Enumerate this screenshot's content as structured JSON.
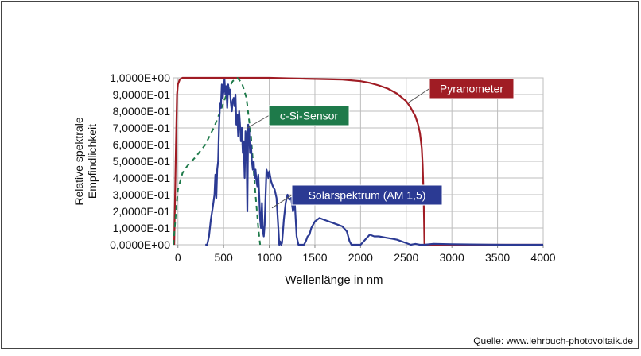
{
  "chart_data": {
    "type": "line",
    "xlabel": "Wellenlänge  in nm",
    "ylabel_lines": [
      "Relative  spektrale",
      "Empfindlichkeit"
    ],
    "xlim": [
      -50,
      4000
    ],
    "ylim": [
      0,
      1
    ],
    "x_ticks": [
      0,
      500,
      1000,
      1500,
      2000,
      2500,
      3000,
      3500,
      4000
    ],
    "x_tick_labels": [
      "0",
      "500",
      "1000",
      "1500",
      "2000",
      "2500",
      "3000",
      "3500",
      "4000"
    ],
    "y_ticks": [
      0,
      0.1,
      0.2,
      0.3,
      0.4,
      0.5,
      0.6,
      0.7,
      0.8,
      0.9,
      1.0
    ],
    "y_tick_labels": [
      "0,0000E+00",
      "1,0000E-01",
      "2,0000E-01",
      "3,0000E-01",
      "4,0000E-01",
      "5,0000E-01",
      "6,0000E-01",
      "7,0000E-01",
      "8,0000E-01",
      "9,0000E-01",
      "1,0000E+00"
    ],
    "grid": true,
    "series": [
      {
        "name": "Pyranometer",
        "color": "#a01c24",
        "style": "solid",
        "x": [
          -40,
          -25,
          -10,
          0,
          20,
          50,
          100,
          300,
          700,
          1000,
          1400,
          1800,
          2000,
          2100,
          2200,
          2300,
          2400,
          2500,
          2550,
          2600,
          2630,
          2650,
          2670,
          2680,
          2690,
          2695,
          2700,
          2720,
          4000
        ],
        "y": [
          0,
          0.5,
          0.9,
          0.96,
          0.99,
          1.0,
          1.0,
          1.0,
          1.0,
          1.0,
          0.995,
          0.99,
          0.98,
          0.97,
          0.955,
          0.935,
          0.905,
          0.86,
          0.82,
          0.77,
          0.72,
          0.67,
          0.58,
          0.48,
          0.3,
          0.15,
          0.0,
          0.0,
          0.0
        ]
      },
      {
        "name": "c-Si-Sensor",
        "color": "#1e7a4a",
        "style": "dashed",
        "x": [
          -50,
          -20,
          0,
          50,
          100,
          150,
          200,
          300,
          400,
          450,
          500,
          550,
          600,
          650,
          700,
          750,
          800,
          850,
          880,
          900
        ],
        "y": [
          0.0,
          0.2,
          0.33,
          0.43,
          0.47,
          0.5,
          0.53,
          0.6,
          0.71,
          0.78,
          0.85,
          0.93,
          0.98,
          1.0,
          0.97,
          0.88,
          0.65,
          0.3,
          0.1,
          0.0
        ]
      },
      {
        "name": "Solarspektrum  (AM 1,5)",
        "color": "#2b3a93",
        "style": "solid",
        "x": [
          300,
          320,
          340,
          360,
          380,
          400,
          410,
          420,
          430,
          440,
          450,
          460,
          470,
          480,
          490,
          500,
          510,
          520,
          530,
          540,
          550,
          560,
          570,
          580,
          590,
          600,
          610,
          620,
          630,
          640,
          650,
          660,
          670,
          680,
          690,
          700,
          710,
          720,
          730,
          740,
          750,
          760,
          770,
          780,
          790,
          800,
          810,
          820,
          830,
          840,
          850,
          860,
          870,
          880,
          890,
          900,
          910,
          920,
          930,
          940,
          950,
          960,
          970,
          980,
          990,
          1000,
          1020,
          1040,
          1060,
          1080,
          1100,
          1110,
          1120,
          1130,
          1140,
          1150,
          1160,
          1180,
          1200,
          1220,
          1240,
          1260,
          1280,
          1300,
          1320,
          1340,
          1360,
          1380,
          1400,
          1420,
          1440,
          1460,
          1480,
          1500,
          1550,
          1600,
          1650,
          1700,
          1750,
          1800,
          1850,
          1880,
          1900,
          1950,
          2000,
          2050,
          2100,
          2150,
          2200,
          2250,
          2300,
          2350,
          2400,
          2450,
          2500,
          2550,
          2600,
          2650,
          2700,
          2800,
          3000,
          3200,
          3400,
          3600,
          3800,
          4000
        ],
        "y": [
          0.0,
          0.0,
          0.05,
          0.15,
          0.22,
          0.3,
          0.42,
          0.28,
          0.45,
          0.5,
          0.7,
          0.85,
          0.82,
          0.96,
          0.88,
          0.92,
          0.99,
          0.9,
          0.95,
          0.82,
          0.96,
          0.9,
          0.93,
          0.85,
          0.8,
          0.86,
          0.88,
          0.83,
          0.9,
          0.72,
          0.78,
          0.65,
          0.8,
          0.72,
          0.62,
          0.7,
          0.55,
          0.62,
          0.4,
          0.68,
          0.62,
          0.2,
          0.72,
          0.68,
          0.55,
          0.6,
          0.5,
          0.45,
          0.5,
          0.4,
          0.45,
          0.38,
          0.35,
          0.42,
          0.3,
          0.15,
          0.1,
          0.25,
          0.08,
          0.05,
          0.12,
          0.3,
          0.45,
          0.43,
          0.4,
          0.44,
          0.38,
          0.35,
          0.33,
          0.28,
          0.1,
          0.0,
          0.02,
          0.0,
          0.01,
          0.08,
          0.15,
          0.25,
          0.3,
          0.27,
          0.28,
          0.2,
          0.25,
          0.05,
          0.0,
          0.0,
          0.0,
          0.0,
          0.02,
          0.05,
          0.06,
          0.1,
          0.12,
          0.14,
          0.16,
          0.15,
          0.14,
          0.13,
          0.12,
          0.11,
          0.08,
          0.02,
          0.0,
          0.0,
          0.0,
          0.03,
          0.06,
          0.05,
          0.05,
          0.045,
          0.04,
          0.035,
          0.03,
          0.02,
          0.01,
          0.0,
          0.005,
          0.0,
          0.0,
          0.005,
          0.003,
          0.002,
          0.001,
          0.0,
          0.0,
          0.0
        ]
      }
    ],
    "annotations": [
      {
        "text": "Pyranometer",
        "bg": "#a01c24",
        "target_x": 2520,
        "target_y": 0.85
      },
      {
        "text": "c-Si-Sensor",
        "bg": "#1e7a4a",
        "target_x": 760,
        "target_y": 0.7
      },
      {
        "text": "Solarspektrum  (AM 1,5)",
        "bg": "#2b3a93",
        "target_x": 1030,
        "target_y": 0.22
      }
    ]
  },
  "source": "Quelle: www.lehrbuch-photovoltaik.de"
}
